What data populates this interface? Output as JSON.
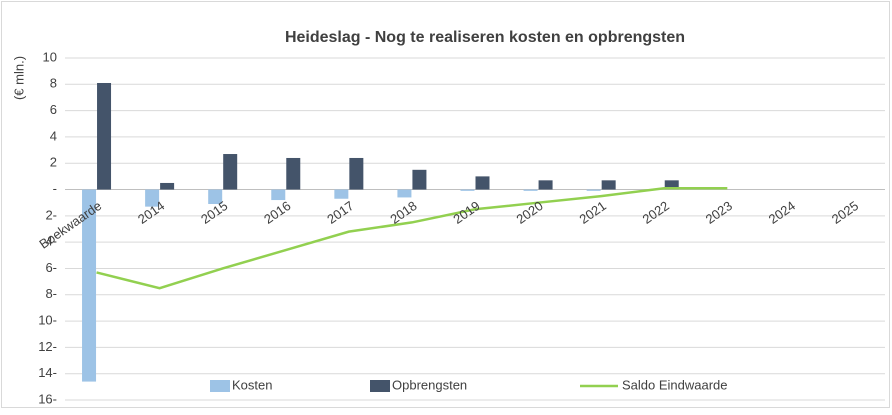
{
  "chart_data": {
    "type": "bar",
    "title": "Heideslag - Nog te realiseren kosten en opbrengsten",
    "ylabel": "(€ mln.)",
    "categories": [
      "Boekwaarde",
      "2014",
      "2015",
      "2016",
      "2017",
      "2018",
      "2019",
      "2020",
      "2021",
      "2022",
      "2023",
      "2024",
      "2025"
    ],
    "series": [
      {
        "name": "Kosten",
        "type": "bar",
        "color": "#9dc3e6",
        "values": [
          -14.6,
          -1.3,
          -1.1,
          -0.8,
          -0.7,
          -0.6,
          -0.1,
          -0.1,
          -0.1,
          0,
          0,
          0,
          0
        ]
      },
      {
        "name": "Opbrengsten",
        "type": "bar",
        "color": "#44546a",
        "values": [
          8.1,
          0.5,
          2.7,
          2.4,
          2.4,
          1.5,
          1.0,
          0.7,
          0.7,
          0.7,
          0,
          0,
          0
        ]
      },
      {
        "name": "Saldo Eindwaarde",
        "type": "line",
        "color": "#92d050",
        "values": [
          -6.3,
          -7.5,
          -6.0,
          -4.6,
          -3.2,
          -2.5,
          -1.5,
          -1.0,
          -0.5,
          0.1,
          0.1,
          null,
          null
        ]
      }
    ],
    "ylim": [
      -16,
      10
    ],
    "yticks": [
      10,
      8,
      6,
      4,
      2,
      {
        "value": 0,
        "label": "-"
      },
      {
        "value": -2,
        "label": "2-"
      },
      {
        "value": -4,
        "label": "4-"
      },
      {
        "value": -6,
        "label": "6-"
      },
      {
        "value": -8,
        "label": "8-"
      },
      {
        "value": -10,
        "label": "10-"
      },
      {
        "value": -12,
        "label": "12-"
      },
      {
        "value": -14,
        "label": "14-"
      },
      {
        "value": -16,
        "label": "16-"
      }
    ],
    "grid": true,
    "legend": "bottom"
  }
}
